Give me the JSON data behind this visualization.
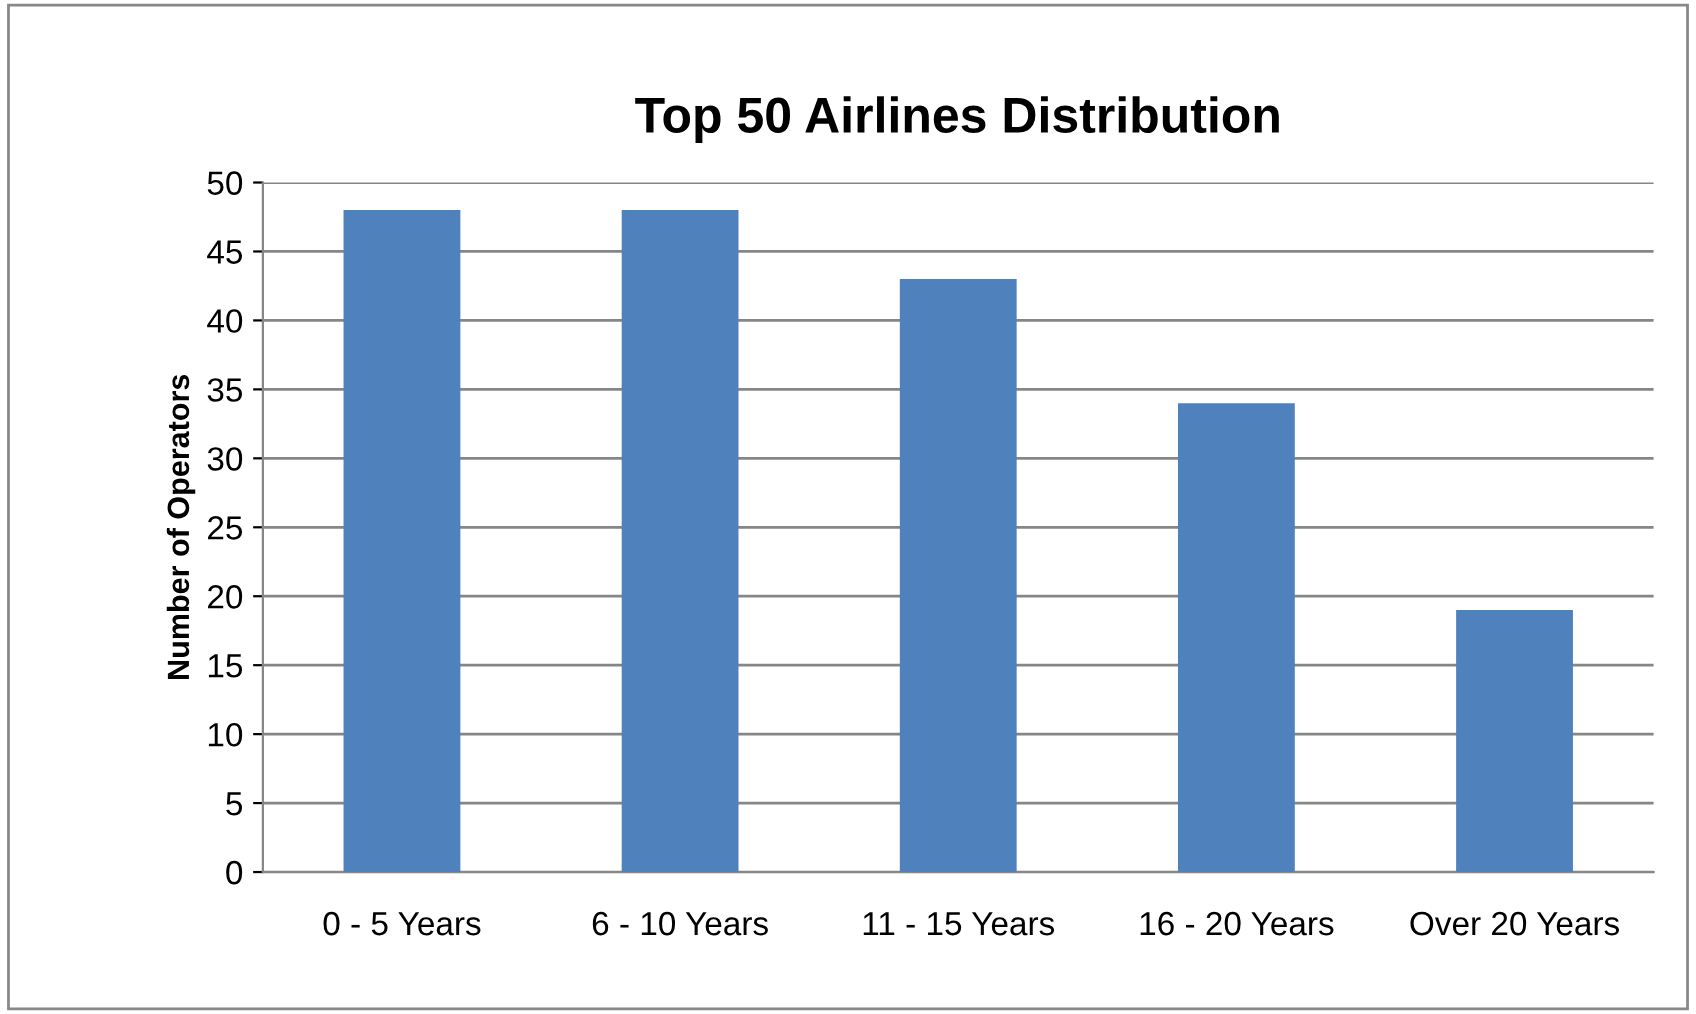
{
  "chart_data": {
    "type": "bar",
    "title": "Top 50 Airlines Distribution",
    "ylabel": "Number of Operators",
    "categories": [
      "0 - 5 Years",
      "6 - 10 Years",
      "11 - 15 Years",
      "16 - 20 Years",
      "Over 20 Years"
    ],
    "values": [
      48,
      48,
      43,
      34,
      19
    ],
    "color": "#4f81bd",
    "ylim": [
      0,
      50
    ],
    "yticks": [
      0,
      5,
      10,
      15,
      20,
      25,
      30,
      35,
      40,
      45,
      50
    ],
    "grid": "y"
  }
}
